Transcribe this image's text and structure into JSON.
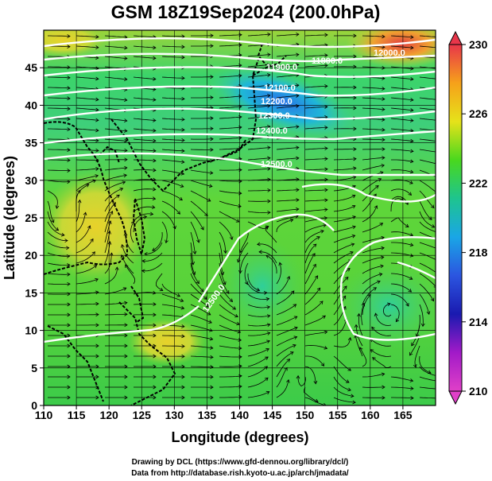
{
  "map": {
    "title": "GSM 18Z19Sep2024 (200.0hPa)",
    "xlabel": "Longitude (degrees)",
    "ylabel": "Latitude (degrees)",
    "xticks": [
      "110",
      "115",
      "120",
      "125",
      "130",
      "135",
      "140",
      "145",
      "150",
      "155",
      "160",
      "165"
    ],
    "yticks": [
      "0",
      "5",
      "10",
      "15",
      "20",
      "25",
      "30",
      "35",
      "40",
      "45"
    ],
    "colorbar_ticks": [
      "230",
      "226",
      "222",
      "218",
      "214",
      "210"
    ],
    "colorbar_colors": [
      "#e8364a",
      "#f6a11a",
      "#e6e21a",
      "#49d81e",
      "#1ec48f",
      "#1aa6e6",
      "#2b55e0",
      "#1a1ab0",
      "#a21ac8",
      "#e040c8"
    ],
    "contour_labels": [
      {
        "text": "11800.0"
      },
      {
        "text": "11900.0"
      },
      {
        "text": "12000.0"
      },
      {
        "text": "12100.0"
      },
      {
        "text": "12200.0"
      },
      {
        "text": "12300.0"
      },
      {
        "text": "12400.0"
      },
      {
        "text": "12500.0"
      },
      {
        "text": "12500.0"
      }
    ],
    "credit_1": "Drawing by DCL (https://www.gfd-dennou.org/library/dcl/)",
    "credit_2": "Data from http://database.rish.kyoto-u.ac.jp/arch/jmadata/"
  }
}
